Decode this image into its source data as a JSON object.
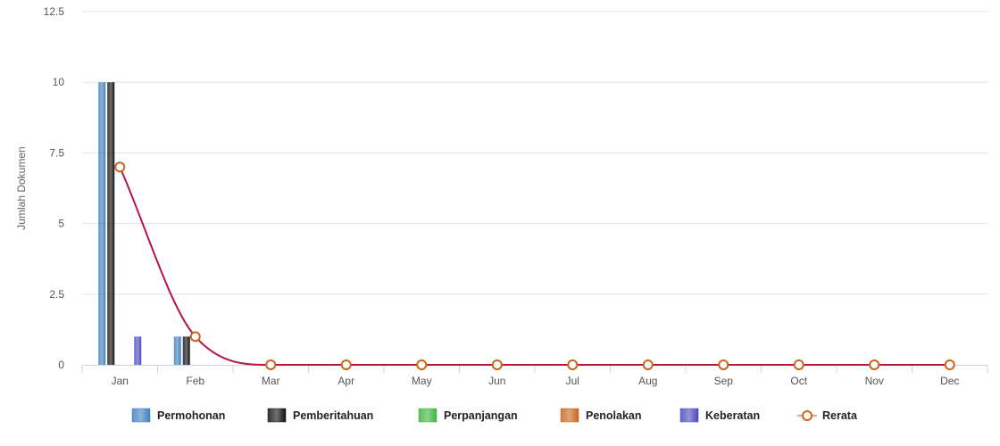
{
  "chart_data": {
    "type": "bar",
    "title": "",
    "xlabel": "",
    "ylabel": "Jumlah Dokumen",
    "ylim": [
      0,
      12.5
    ],
    "yticks": [
      "0",
      "2.5",
      "5",
      "7.5",
      "10",
      "12.5"
    ],
    "grid": true,
    "legend_position": "bottom",
    "categories": [
      "Jan",
      "Feb",
      "Mar",
      "Apr",
      "May",
      "Jun",
      "Jul",
      "Aug",
      "Sep",
      "Oct",
      "Nov",
      "Dec"
    ],
    "series": [
      {
        "name": "Permohonan",
        "type": "bar",
        "color": "#3f7fc0",
        "values": [
          10,
          1,
          0,
          0,
          0,
          0,
          0,
          0,
          0,
          0,
          0,
          0
        ]
      },
      {
        "name": "Pemberitahuan",
        "type": "bar",
        "color": "#111111",
        "values": [
          10,
          1,
          0,
          0,
          0,
          0,
          0,
          0,
          0,
          0,
          0,
          0
        ]
      },
      {
        "name": "Perpanjangan",
        "type": "bar",
        "color": "#3fb33f",
        "values": [
          0,
          0,
          0,
          0,
          0,
          0,
          0,
          0,
          0,
          0,
          0,
          0
        ]
      },
      {
        "name": "Penolakan",
        "type": "bar",
        "color": "#c8651e",
        "values": [
          0,
          0,
          0,
          0,
          0,
          0,
          0,
          0,
          0,
          0,
          0,
          0
        ]
      },
      {
        "name": "Keberatan",
        "type": "bar",
        "color": "#4a48c0",
        "values": [
          1,
          0,
          0,
          0,
          0,
          0,
          0,
          0,
          0,
          0,
          0,
          0
        ]
      },
      {
        "name": "Rerata",
        "type": "line",
        "color": "#b5173f",
        "marker_color": "#c8651e",
        "values": [
          7,
          1,
          0,
          0,
          0,
          0,
          0,
          0,
          0,
          0,
          0,
          0
        ]
      }
    ]
  }
}
